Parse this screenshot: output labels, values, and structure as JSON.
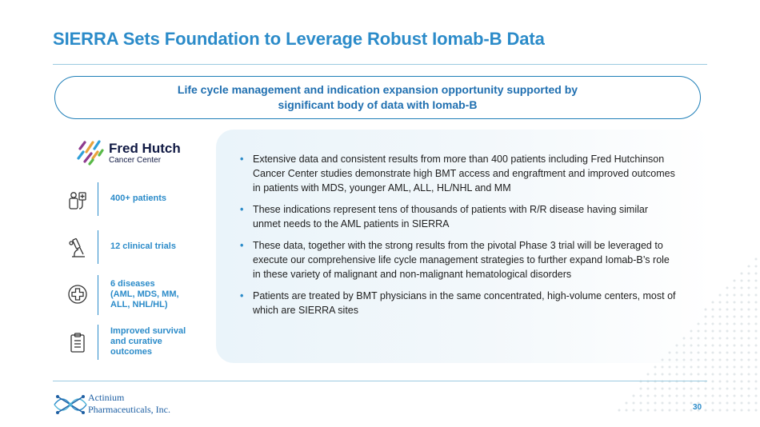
{
  "title": "SIERRA Sets Foundation to Leverage Robust Iomab-B Data",
  "callout": {
    "line1": "Life cycle management and indication expansion opportunity supported by",
    "line2": "significant body of data with Iomab-B"
  },
  "fred_hutch": {
    "name": "Fred Hutch",
    "sub": "Cancer Center"
  },
  "stats": [
    {
      "icon": "patients-icon",
      "text": "400+ patients"
    },
    {
      "icon": "microscope-icon",
      "text": "12 clinical trials"
    },
    {
      "icon": "medical-cross-icon",
      "text": "6 diseases\n(AML, MDS, MM,\nALL, NHL/HL)"
    },
    {
      "icon": "clipboard-icon",
      "text": "Improved survival\nand curative\noutcomes"
    }
  ],
  "bullets": [
    "Extensive data and consistent results from more than 400 patients including Fred Hutchinson Cancer Center studies demonstrate high BMT access and engraftment and improved outcomes in patients with MDS, younger AML, ALL, HL/NHL and MM",
    "These indications represent tens of thousands of patients with R/R disease having similar unmet needs to the AML patients in SIERRA",
    "These data, together with the strong results from the pivotal Phase 3 trial will be leveraged to execute our comprehensive life cycle management strategies to further expand Iomab-B’s role in these variety of malignant and non-malignant hematological disorders",
    "Patients are treated by BMT physicians in the same concentrated, high-volume centers, most of which are SIERRA sites"
  ],
  "company": {
    "line1": "Actinium",
    "line2": "Pharmaceuticals, Inc."
  },
  "page_number": "30",
  "colors": {
    "accent": "#2b8bc9",
    "navy": "#111a44"
  }
}
